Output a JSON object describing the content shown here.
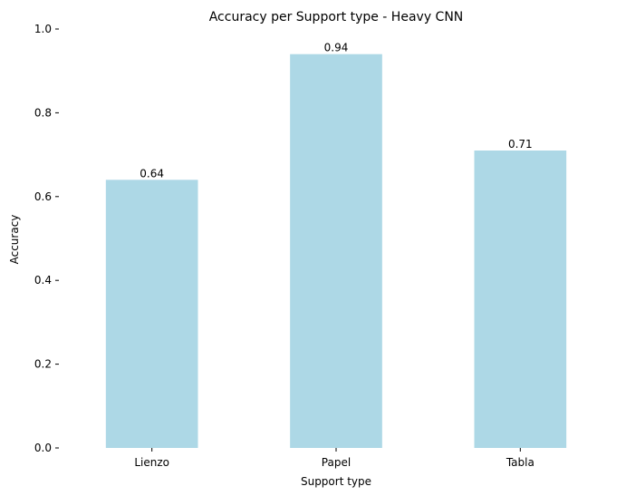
{
  "chart_data": {
    "type": "bar",
    "title": "Accuracy per Support type - Heavy CNN",
    "xlabel": "Support type",
    "ylabel": "Accuracy",
    "categories": [
      "Lienzo",
      "Papel",
      "Tabla"
    ],
    "values": [
      0.64,
      0.94,
      0.71
    ],
    "value_labels": [
      "0.64",
      "0.94",
      "0.71"
    ],
    "ylim": [
      0,
      1
    ],
    "yticks": [
      0.0,
      0.2,
      0.4,
      0.6,
      0.8,
      1.0
    ],
    "ytick_labels": [
      "0.0",
      "0.2",
      "0.4",
      "0.6",
      "0.8",
      "1.0"
    ],
    "grid": false,
    "bar_color": "#add8e6"
  }
}
